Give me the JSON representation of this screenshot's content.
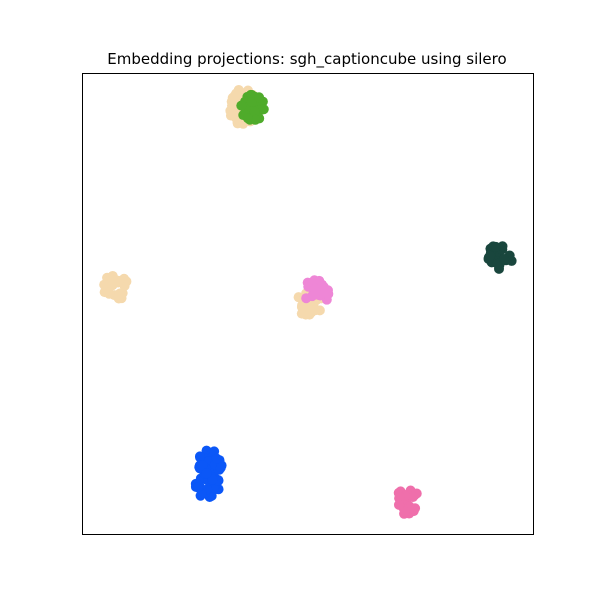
{
  "chart_data": {
    "type": "scatter",
    "title": "Embedding projections: sgh_captioncube using silero",
    "xlabel": "",
    "ylabel": "",
    "xlim": [
      0,
      100
    ],
    "ylim": [
      0,
      100
    ],
    "grid": false,
    "axis_ticks": false,
    "legend": "none",
    "series": [
      {
        "color": "#f5d9ad",
        "points": [
          [
            7.5,
            53.5
          ],
          [
            36,
            94
          ],
          [
            35.5,
            91.5
          ],
          [
            50.5,
            50
          ]
        ]
      },
      {
        "color": "#4fab2b",
        "points": [
          [
            38,
            92.5
          ]
        ]
      },
      {
        "color": "#19463d",
        "points": [
          [
            92.5,
            60
          ]
        ]
      },
      {
        "color": "#ee86d6",
        "points": [
          [
            52,
            52.5
          ]
        ]
      },
      {
        "color": "#0b57f7",
        "points": [
          [
            28,
            10.5
          ],
          [
            28.5,
            13.5
          ],
          [
            28.5,
            15.5
          ]
        ]
      },
      {
        "color": "#ef6fab",
        "points": [
          [
            72,
            7
          ]
        ]
      }
    ]
  }
}
